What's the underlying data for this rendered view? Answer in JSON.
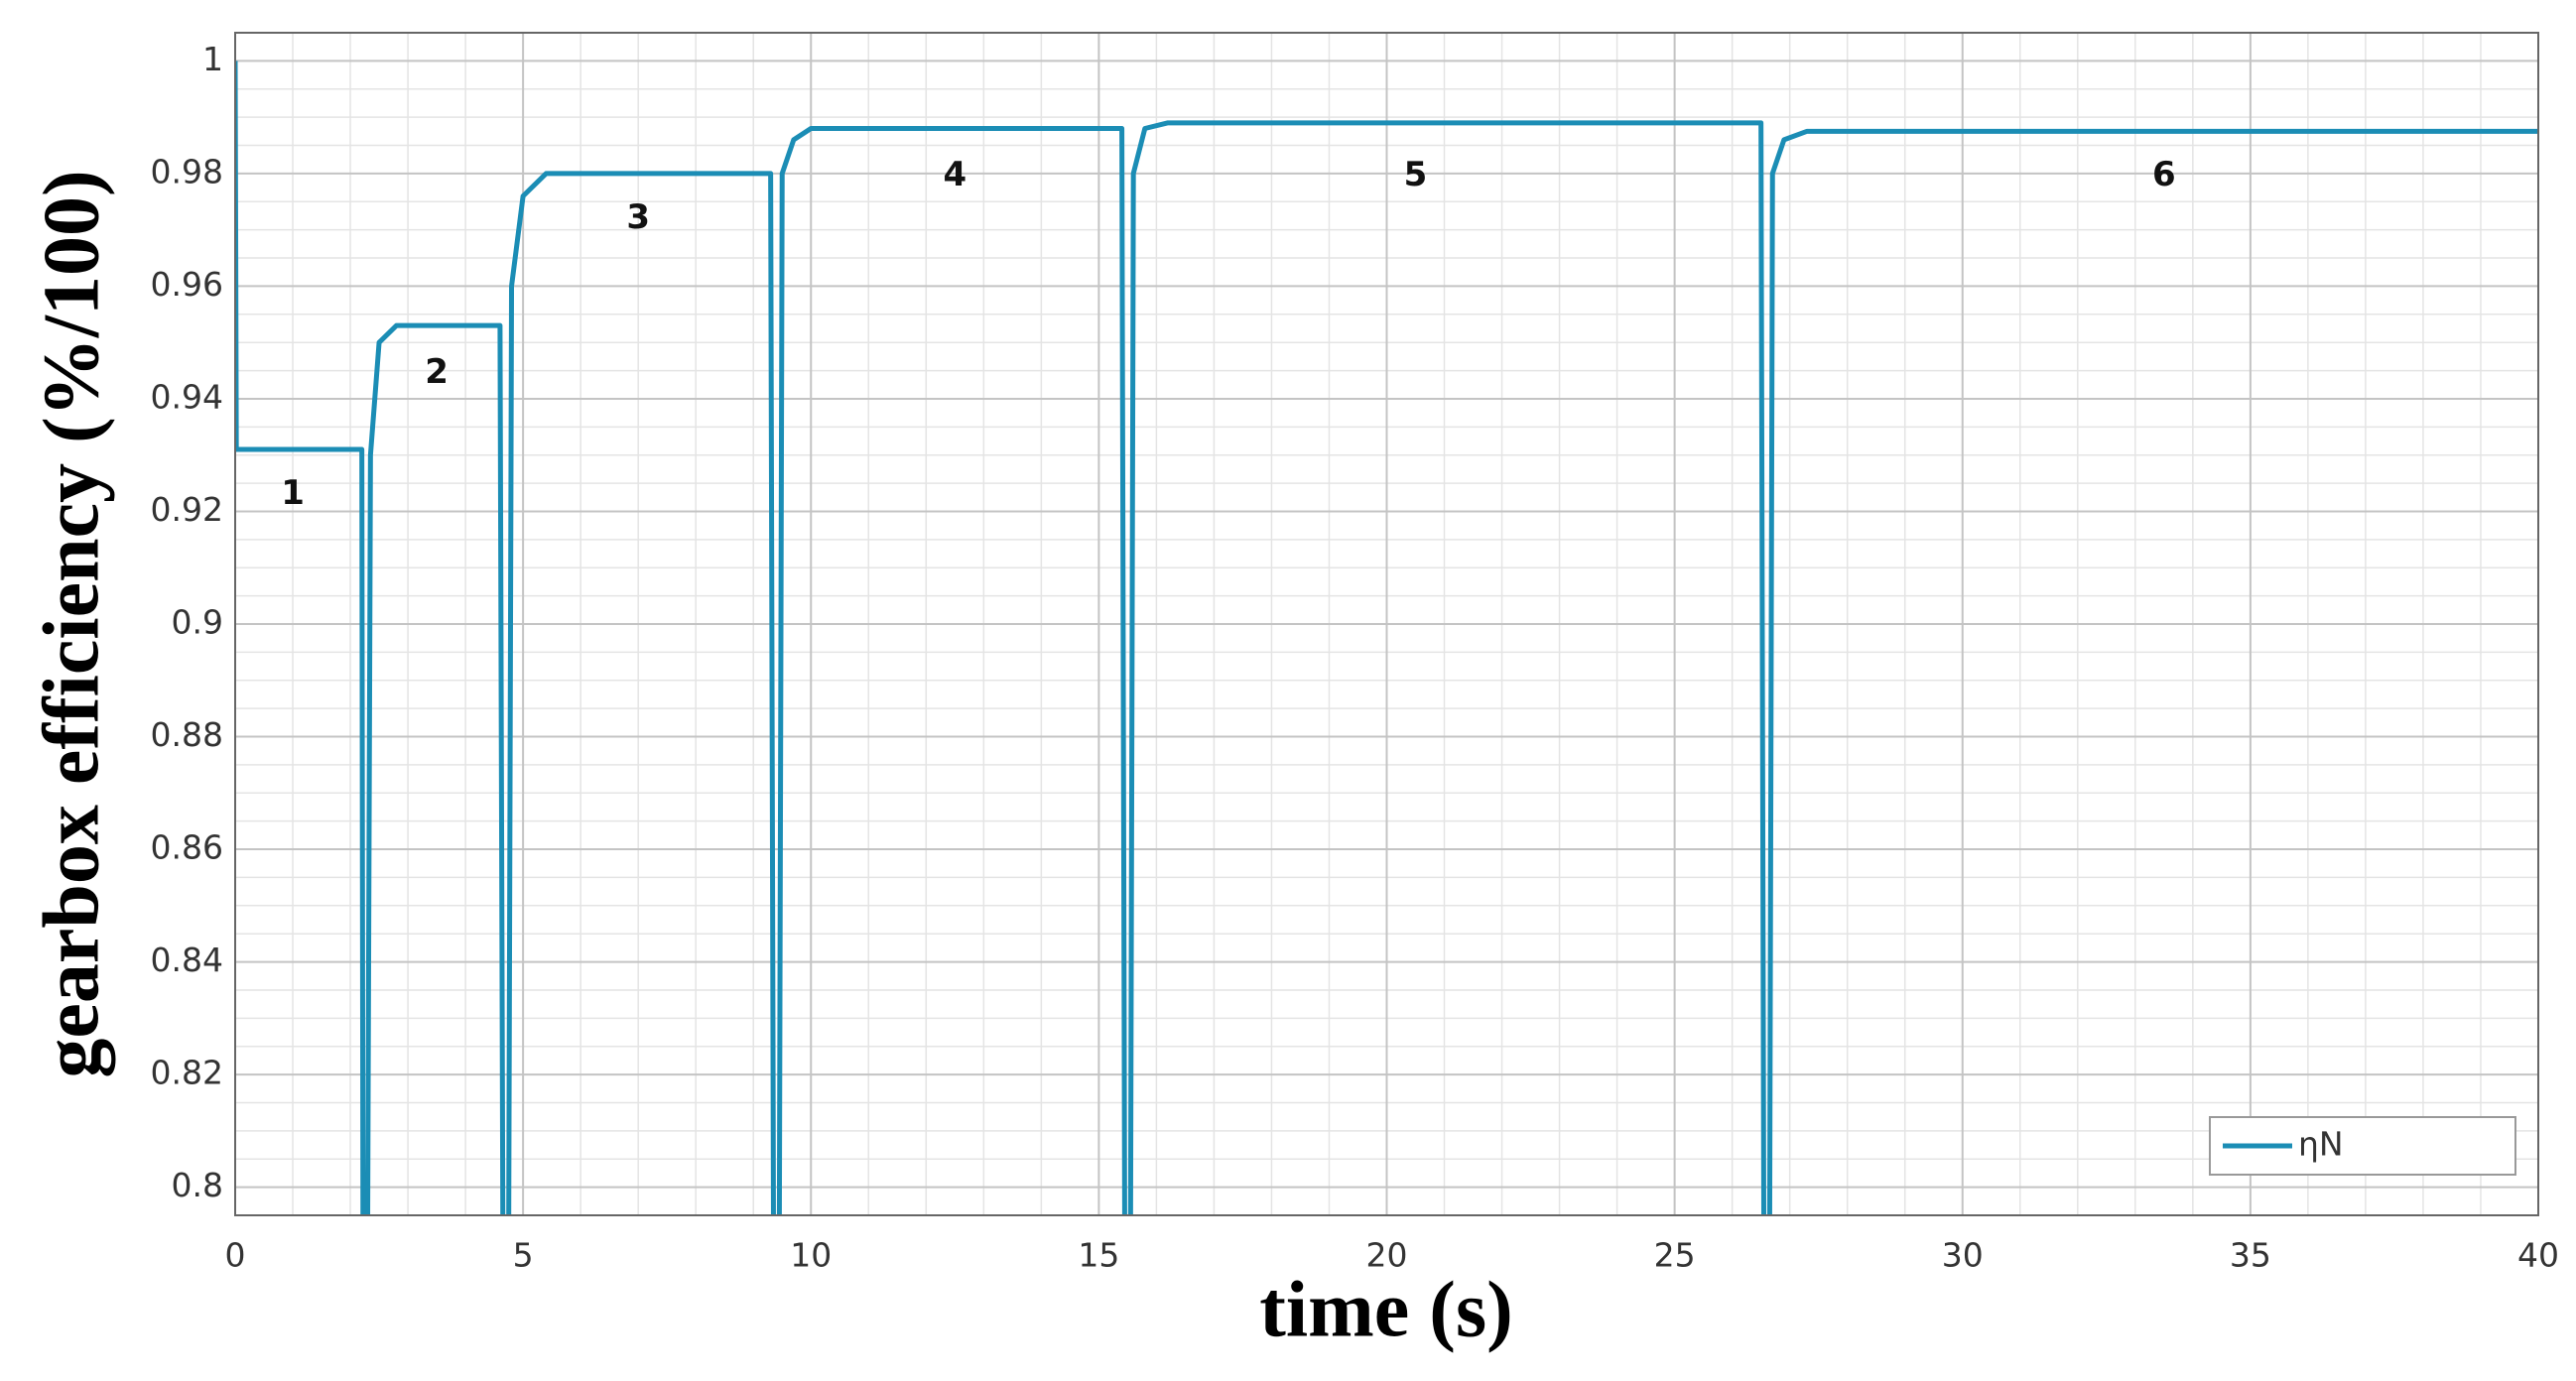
{
  "chart_data": {
    "type": "line",
    "xlabel": "time (s)",
    "ylabel": "gearbox efficiency (%/100)",
    "xlim": [
      0,
      40
    ],
    "xticks": [
      0,
      5,
      10,
      15,
      20,
      25,
      30,
      35,
      40
    ],
    "ylim": [
      0.795,
      1.005
    ],
    "yticks": [
      0.8,
      0.82,
      0.84,
      0.86,
      0.88,
      0.9,
      0.92,
      0.94,
      0.96,
      0.98,
      1
    ],
    "xminorticks": [
      0,
      1,
      2,
      3,
      4,
      5,
      6,
      7,
      8,
      9,
      10,
      11,
      12,
      13,
      14,
      15,
      16,
      17,
      18,
      19,
      20,
      21,
      22,
      23,
      24,
      25,
      26,
      27,
      28,
      29,
      30,
      31,
      32,
      33,
      34,
      35,
      36,
      37,
      38,
      39,
      40
    ],
    "yminorticks": [
      0.8,
      0.805,
      0.81,
      0.815,
      0.82,
      0.825,
      0.83,
      0.835,
      0.84,
      0.845,
      0.85,
      0.855,
      0.86,
      0.865,
      0.87,
      0.875,
      0.88,
      0.885,
      0.89,
      0.895,
      0.9,
      0.905,
      0.91,
      0.915,
      0.92,
      0.925,
      0.93,
      0.935,
      0.94,
      0.945,
      0.95,
      0.955,
      0.96,
      0.965,
      0.97,
      0.975,
      0.98,
      0.985,
      0.99,
      0.995,
      1
    ],
    "grid": true,
    "minor_grid": true,
    "legend": "lower right",
    "annotations": [
      "1",
      "2",
      "3",
      "4",
      "5",
      "6"
    ],
    "series": [
      {
        "name": "ηN",
        "color": "#1b8db5",
        "x": [
          0,
          0.02,
          2.2,
          2.22,
          2.3,
          2.35,
          2.5,
          2.8,
          4.6,
          4.65,
          4.75,
          4.8,
          5.0,
          5.4,
          9.3,
          9.35,
          9.45,
          9.5,
          9.7,
          10.0,
          15.4,
          15.45,
          15.55,
          15.6,
          15.8,
          16.2,
          26.5,
          26.55,
          26.65,
          26.7,
          26.9,
          27.3,
          40
        ],
        "values": [
          1.0,
          0.931,
          0.931,
          0.79,
          0.79,
          0.93,
          0.95,
          0.953,
          0.953,
          0.79,
          0.79,
          0.96,
          0.976,
          0.98,
          0.98,
          0.79,
          0.79,
          0.98,
          0.986,
          0.988,
          0.988,
          0.79,
          0.79,
          0.98,
          0.988,
          0.989,
          0.989,
          0.79,
          0.79,
          0.98,
          0.986,
          0.9875,
          0.9875
        ]
      }
    ]
  }
}
